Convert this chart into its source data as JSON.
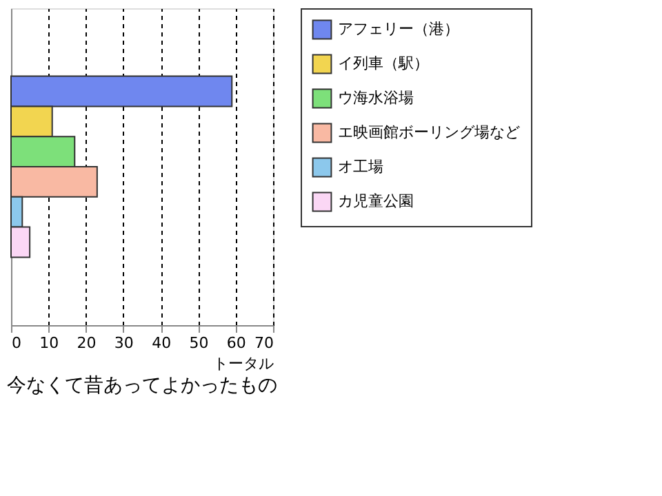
{
  "chart_data": {
    "type": "bar",
    "orientation": "horizontal",
    "title": "今なくて昔あってよかったもの",
    "xlabel": "トータル",
    "categories": [
      null
    ],
    "series": [
      {
        "name": "アフェリー（港）",
        "color": "#6f87ef",
        "values": [
          59
        ]
      },
      {
        "name": "イ列車（駅）",
        "color": "#f2d550",
        "values": [
          11
        ]
      },
      {
        "name": "ウ海水浴場",
        "color": "#7de07a",
        "values": [
          17
        ]
      },
      {
        "name": "エ映画館ボーリング場など",
        "color": "#f9b9a3",
        "values": [
          23
        ]
      },
      {
        "name": "オ工場",
        "color": "#8cc8ec",
        "values": [
          3
        ]
      },
      {
        "name": "カ児童公園",
        "color": "#fbd7f5",
        "values": [
          5
        ]
      }
    ],
    "xlim": [
      0,
      70
    ],
    "xticks": [
      0,
      10,
      20,
      30,
      40,
      50,
      60,
      70
    ],
    "grid": "x",
    "legend": "right",
    "tick_labels": "x"
  }
}
